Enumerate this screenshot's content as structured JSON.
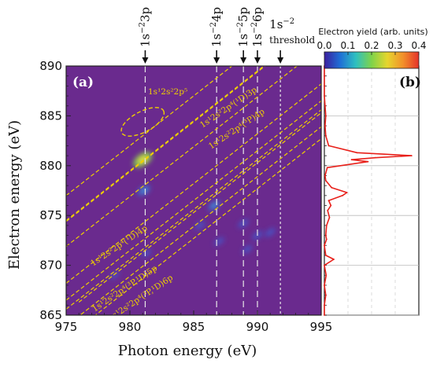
{
  "chart_data": [
    {
      "type": "heatmap",
      "panel_label": "(a)",
      "xlabel": "Photon energy (eV)",
      "ylabel": "Electron energy (eV)",
      "xlim": [
        975,
        995
      ],
      "ylim": [
        865,
        890
      ],
      "x_ticks": [
        975,
        980,
        985,
        990,
        995
      ],
      "y_ticks": [
        865,
        870,
        875,
        880,
        885,
        890
      ],
      "background_color": "#6a2a8e",
      "resonances": [
        {
          "label": "1s⁻²3p",
          "photon_energy": 981.2
        },
        {
          "label": "1s⁻²4p",
          "photon_energy": 986.8
        },
        {
          "label": "1s⁻²5p",
          "photon_energy": 988.9
        },
        {
          "label": "1s⁻²6p",
          "photon_energy": 990.0
        },
        {
          "label": "1s⁻² threshold",
          "photon_energy": 991.8
        }
      ],
      "resonance_label_parts": [
        {
          "base": "1s",
          "sup": "−2",
          "tail": "3p"
        },
        {
          "base": "1s",
          "sup": "−2",
          "tail": "4p"
        },
        {
          "base": "1s",
          "sup": "−2",
          "tail": "5p"
        },
        {
          "base": "1s",
          "sup": "−2",
          "tail": "6p"
        },
        {
          "base": "1s",
          "sup": "−2",
          "tail": "",
          "line2": "threshold"
        }
      ],
      "config_lines": [
        {
          "label": "1s¹2s²2p⁵",
          "type": "ellipse",
          "center": [
            981.0,
            884.4
          ]
        },
        {
          "label": "1s¹2s²2p⁴(¹D)3p",
          "type": "diagonal",
          "x0": 975,
          "y0": 875.7
        },
        {
          "label": "1s¹2s²2p⁴(³P)4p",
          "type": "diagonal",
          "x0": 975,
          "y0": 873.2
        },
        {
          "label": "1s¹2s²2p⁴(¹D)4p",
          "type": "diagonal",
          "x0": 975,
          "y0": 866.9
        },
        {
          "label": "1s¹2s²2p⁴(³P,¹D)5p",
          "type": "diagonal",
          "x0": 975,
          "y0": 865.2
        },
        {
          "label": "1s¹2s²2p⁴(³P,¹D)6p",
          "type": "diagonal",
          "x0": 976,
          "y0": 865.0
        }
      ],
      "config_text": [
        "1s¹2s²2p⁵",
        "1s¹2s²2p⁴(¹D)3p",
        "1s¹2s²2p⁴(³P)4p",
        "1s¹2s²2p⁴(¹D)4p",
        "1s¹2s²2p⁴(³P,¹D)5p",
        "1s¹2s²2p⁴(³P,¹D)6p"
      ],
      "intensity_spots": [
        {
          "x": 981.0,
          "y": 880.6,
          "value": 0.38
        },
        {
          "x": 981.1,
          "y": 877.5,
          "value": 0.14
        },
        {
          "x": 986.6,
          "y": 876.0,
          "value": 0.12
        },
        {
          "x": 985.5,
          "y": 874.0,
          "value": 0.08
        },
        {
          "x": 988.9,
          "y": 874.2,
          "value": 0.09
        },
        {
          "x": 990.0,
          "y": 873.0,
          "value": 0.1
        },
        {
          "x": 991.0,
          "y": 873.3,
          "value": 0.09
        },
        {
          "x": 981.3,
          "y": 871.2,
          "value": 0.06
        },
        {
          "x": 987.0,
          "y": 872.4,
          "value": 0.06
        },
        {
          "x": 989.2,
          "y": 871.6,
          "value": 0.07
        },
        {
          "x": 978.8,
          "y": 869.0,
          "value": 0.04
        }
      ]
    },
    {
      "type": "colorbar",
      "title": "Electron yield (arb. units)",
      "range": [
        0.0,
        0.4
      ],
      "ticks": [
        "0.0",
        "0.1",
        "0.2",
        "0.3",
        "0.4"
      ],
      "colors": [
        "#3b1f9e",
        "#1f6fd6",
        "#2fc0c0",
        "#7fd34a",
        "#e6d52e",
        "#f2902a",
        "#e5322a"
      ]
    },
    {
      "type": "line",
      "panel_label": "(b)",
      "orientation": "vertical",
      "line_color": "#e8201a",
      "y": [
        865,
        866,
        867,
        868,
        869,
        870,
        870.6,
        871,
        872,
        872.6,
        873,
        874,
        874.8,
        875.5,
        876,
        876.5,
        877,
        877.3,
        877.8,
        878.5,
        879,
        879.8,
        880.4,
        880.6,
        880.8,
        881.0,
        881.3,
        882,
        883,
        884,
        885,
        886,
        887,
        888,
        889,
        890
      ],
      "values": [
        0.0,
        0.0,
        0.004,
        0.0,
        0.005,
        0.0,
        0.026,
        0.004,
        0.0,
        0.006,
        0.004,
        0.006,
        0.014,
        0.009,
        0.018,
        0.012,
        0.05,
        0.062,
        0.02,
        0.004,
        0.002,
        0.008,
        0.12,
        0.075,
        0.14,
        0.24,
        0.09,
        0.012,
        0.004,
        0.002,
        0.004,
        0.002,
        0.0,
        0.0,
        0.0,
        0.0
      ],
      "xlim": [
        0,
        0.26
      ]
    }
  ]
}
